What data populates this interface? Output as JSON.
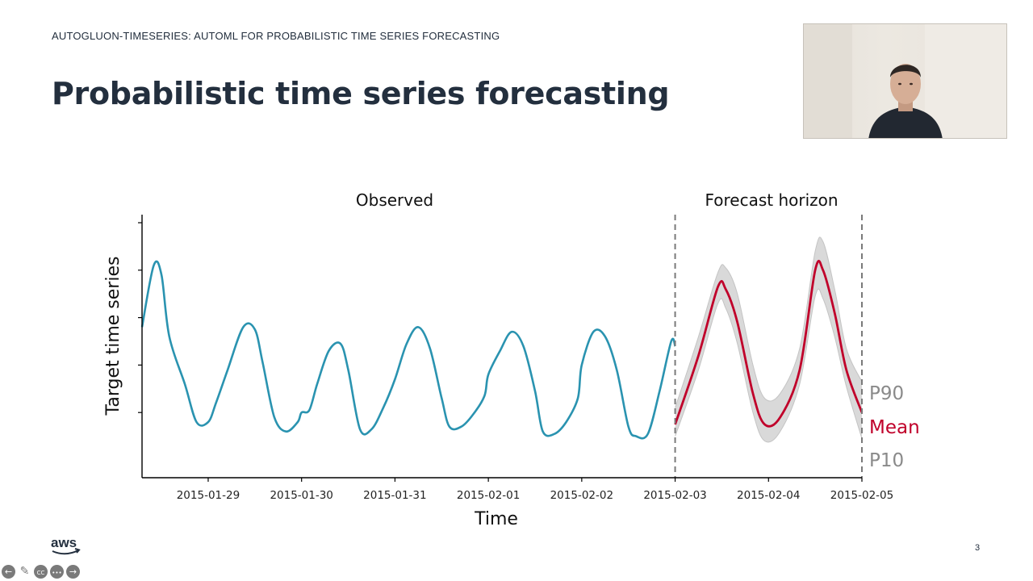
{
  "slide": {
    "header": "AUTOGLUON-TIMESERIES: AUTOML FOR PROBABILISTIC TIME SERIES FORECASTING",
    "title": "Probabilistic time series forecasting",
    "page_number": "3",
    "logo_text": "aws"
  },
  "controls": [
    {
      "name": "previous-slide-button",
      "icon": "arrow-left-icon",
      "glyph": "←"
    },
    {
      "name": "pen-tool-button",
      "icon": "pencil-icon",
      "glyph": "✎"
    },
    {
      "name": "captions-button",
      "icon": "cc-icon",
      "glyph": "CC"
    },
    {
      "name": "more-options-button",
      "icon": "ellipsis-icon",
      "glyph": "•••"
    },
    {
      "name": "next-slide-button",
      "icon": "arrow-right-icon",
      "glyph": "→"
    }
  ],
  "chart_data": {
    "type": "line",
    "xlabel": "Time",
    "ylabel": "Target time series",
    "x_tick_labels": [
      "2015-01-29",
      "2015-01-30",
      "2015-01-31",
      "2015-02-01",
      "2015-02-02",
      "2015-02-03",
      "2015-02-04",
      "2015-02-05"
    ],
    "xlim": [
      "2015-01-28 07:00",
      "2015-02-05 00:00"
    ],
    "ylim": [
      0,
      100
    ],
    "region_labels": {
      "observed": "Observed",
      "forecast": "Forecast horizon"
    },
    "forecast_start": "2015-02-03 00:00",
    "forecast_end": "2015-02-05 00:00",
    "colors": {
      "observed": "#2a93b0",
      "mean": "#c0002a",
      "band": "#d9d9d9",
      "band_edge": "#c4c4c4",
      "quantile_label": "#8a8a8a",
      "axis": "#000000",
      "divider": "#7a7a7a"
    },
    "series": [
      {
        "name": "observed",
        "x": [
          "2015-01-28 07:00",
          "2015-01-28 10:00",
          "2015-01-28 12:00",
          "2015-01-28 14:00",
          "2015-01-28 18:00",
          "2015-01-28 21:00",
          "2015-01-29 00:00",
          "2015-01-29 02:00",
          "2015-01-29 05:00",
          "2015-01-29 09:00",
          "2015-01-29 12:00",
          "2015-01-29 14:00",
          "2015-01-29 17:00",
          "2015-01-29 20:00",
          "2015-01-29 23:00",
          "2015-01-30 00:00",
          "2015-01-30 02:00",
          "2015-01-30 04:00",
          "2015-01-30 07:00",
          "2015-01-30 10:00",
          "2015-01-30 12:00",
          "2015-01-30 15:00",
          "2015-01-30 18:00",
          "2015-01-30 21:00",
          "2015-01-31 00:00",
          "2015-01-31 03:00",
          "2015-01-31 06:00",
          "2015-01-31 09:00",
          "2015-01-31 12:00",
          "2015-01-31 14:00",
          "2015-01-31 17:00",
          "2015-01-31 20:00",
          "2015-01-31 23:00",
          "2015-02-01 00:00",
          "2015-02-01 03:00",
          "2015-02-01 06:00",
          "2015-02-01 09:00",
          "2015-02-01 12:00",
          "2015-02-01 14:00",
          "2015-02-01 17:00",
          "2015-02-01 20:00",
          "2015-02-01 23:00",
          "2015-02-02 00:00",
          "2015-02-02 03:00",
          "2015-02-02 06:00",
          "2015-02-02 09:00",
          "2015-02-02 12:00",
          "2015-02-02 14:00",
          "2015-02-02 17:00",
          "2015-02-02 20:00",
          "2015-02-02 23:00",
          "2015-02-03 00:00"
        ],
        "values": [
          56,
          82,
          78,
          52,
          32,
          16,
          16,
          24,
          38,
          56,
          55,
          41,
          18,
          12,
          16,
          20,
          21,
          32,
          46,
          49,
          38,
          13,
          13,
          22,
          34,
          49,
          56,
          47,
          26,
          14,
          14,
          19,
          27,
          36,
          46,
          54,
          48,
          29,
          12,
          11,
          16,
          26,
          40,
          54,
          52,
          38,
          14,
          10,
          11,
          29,
          50,
          48
        ]
      },
      {
        "name": "P90",
        "x": [
          "2015-02-03 00:00",
          "2015-02-03 06:00",
          "2015-02-03 11:00",
          "2015-02-03 13:00",
          "2015-02-03 16:00",
          "2015-02-03 20:00",
          "2015-02-03 23:00",
          "2015-02-04 03:00",
          "2015-02-04 08:00",
          "2015-02-04 12:00",
          "2015-02-04 14:00",
          "2015-02-04 17:00",
          "2015-02-04 20:00",
          "2015-02-05 00:00"
        ],
        "values": [
          22,
          52,
          79,
          81,
          70,
          40,
          26,
          28,
          47,
          88,
          92,
          72,
          47,
          33
        ]
      },
      {
        "name": "Mean",
        "x": [
          "2015-02-03 00:00",
          "2015-02-03 06:00",
          "2015-02-03 11:00",
          "2015-02-03 13:00",
          "2015-02-03 16:00",
          "2015-02-03 20:00",
          "2015-02-03 23:00",
          "2015-02-04 03:00",
          "2015-02-04 08:00",
          "2015-02-04 12:00",
          "2015-02-04 14:00",
          "2015-02-04 17:00",
          "2015-02-04 20:00",
          "2015-02-05 00:00"
        ],
        "values": [
          15,
          44,
          73,
          72,
          58,
          28,
          15,
          18,
          38,
          80,
          80,
          62,
          38,
          20
        ]
      },
      {
        "name": "P10",
        "x": [
          "2015-02-03 00:00",
          "2015-02-03 06:00",
          "2015-02-03 11:00",
          "2015-02-03 13:00",
          "2015-02-03 16:00",
          "2015-02-03 20:00",
          "2015-02-03 23:00",
          "2015-02-04 03:00",
          "2015-02-04 08:00",
          "2015-02-04 12:00",
          "2015-02-04 14:00",
          "2015-02-04 17:00",
          "2015-02-04 20:00",
          "2015-02-05 00:00"
        ],
        "values": [
          10,
          38,
          66,
          64,
          49,
          20,
          8,
          12,
          32,
          69,
          68,
          52,
          31,
          9
        ]
      }
    ],
    "end_labels": [
      "P90",
      "Mean",
      "P10"
    ]
  }
}
